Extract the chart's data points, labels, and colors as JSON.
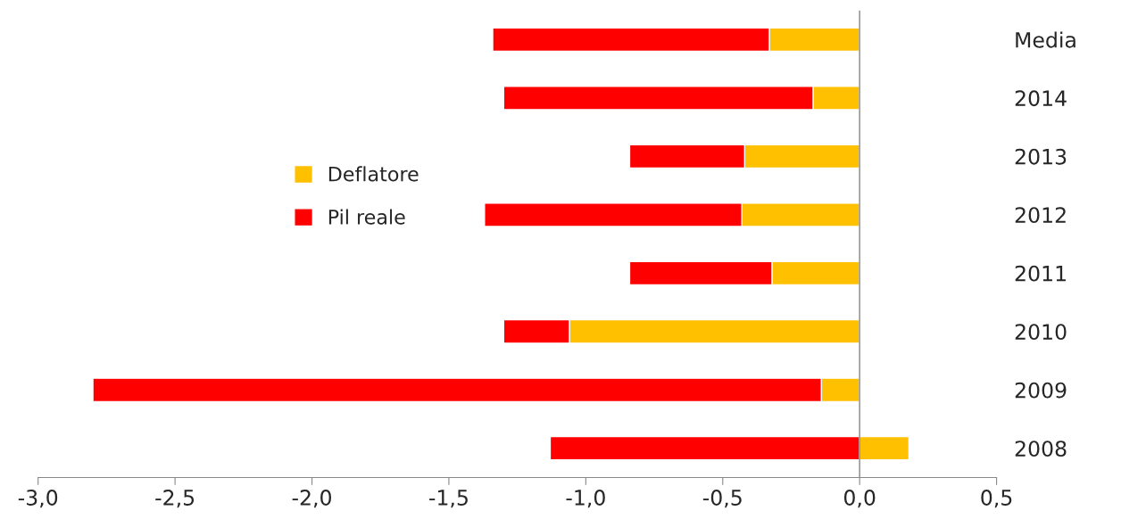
{
  "chart_data": {
    "type": "bar",
    "orientation": "horizontal",
    "stacked": true,
    "categories": [
      "Media",
      "2014",
      "2013",
      "2012",
      "2011",
      "2010",
      "2009",
      "2008"
    ],
    "series": [
      {
        "name": "Deflatore",
        "color": "#ffc000",
        "values": [
          -0.33,
          -0.17,
          -0.42,
          -0.43,
          -0.32,
          -1.06,
          -0.14,
          0.18
        ]
      },
      {
        "name": "Pil reale",
        "color": "#ff0000",
        "values": [
          -1.01,
          -1.13,
          -0.42,
          -0.94,
          -0.52,
          -0.24,
          -2.66,
          -1.13
        ]
      }
    ],
    "xlim": [
      -3.0,
      0.5
    ],
    "xticks": [
      {
        "value": -3.0,
        "label": "-3,0"
      },
      {
        "value": -2.5,
        "label": "-2,5"
      },
      {
        "value": -2.0,
        "label": "-2,0"
      },
      {
        "value": -1.5,
        "label": "-1,5"
      },
      {
        "value": -1.0,
        "label": "-1,0"
      },
      {
        "value": -0.5,
        "label": "-0,5"
      },
      {
        "value": 0.0,
        "label": "0,0"
      },
      {
        "value": 0.5,
        "label": "0,5"
      }
    ],
    "ref_lines": [
      {
        "axis": "x",
        "value": 0.0,
        "color": "#999999"
      }
    ],
    "legend": "left",
    "grid": false
  }
}
